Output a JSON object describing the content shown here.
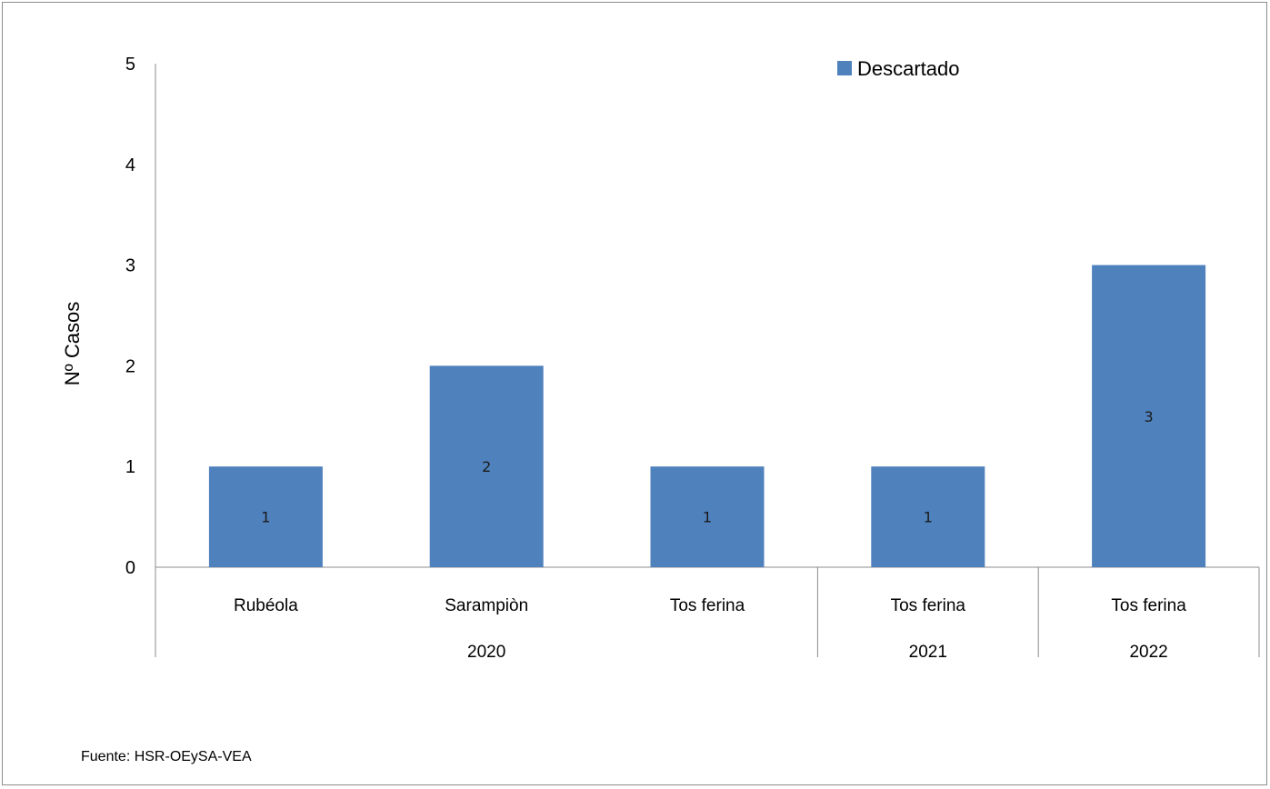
{
  "chart_data": {
    "type": "bar",
    "title": "",
    "ylabel": "Nº Casos",
    "xlabel": "",
    "ylim": [
      0,
      5
    ],
    "yticks": [
      0,
      1,
      2,
      3,
      4,
      5
    ],
    "grid": false,
    "legend_position": "top-right",
    "categories": [
      "Rubéola",
      "Sarampiòn",
      "Tos ferina",
      "Tos ferina",
      "Tos ferina"
    ],
    "groups": [
      {
        "label": "2020",
        "count": 3
      },
      {
        "label": "2021",
        "count": 1
      },
      {
        "label": "2022",
        "count": 1
      }
    ],
    "series": [
      {
        "name": "Descartado",
        "color": "#4f81bd",
        "values": [
          1,
          2,
          1,
          1,
          3
        ]
      }
    ],
    "source": "Fuente: HSR-OEySA-VEA"
  }
}
